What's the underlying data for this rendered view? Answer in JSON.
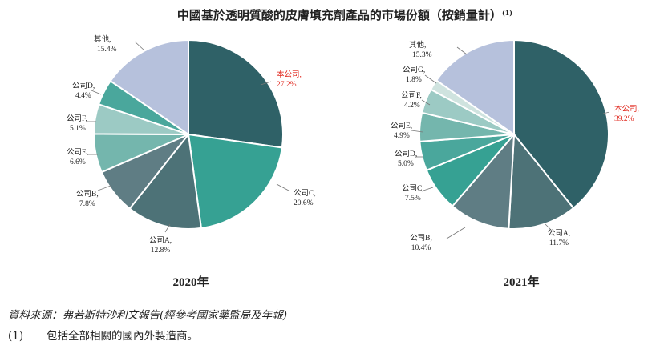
{
  "title": "中國基於透明質酸的皮膚填充劑產品的市場份額（按銷量計）",
  "title_sup": "(1)",
  "colors": {
    "highlight_text": "#e0251b",
    "company_main": "#2f6167",
    "company_a": "#4d7277",
    "company_b": "#5f7d84",
    "company_c": "#36a193",
    "company_d": "#4aa79c",
    "company_e": "#74b6ad",
    "company_f": "#9ccac4",
    "company_g": "#cfe3df",
    "others": "#b6c1dc"
  },
  "chart_data": [
    {
      "type": "pie",
      "caption": "2020年",
      "slices": [
        {
          "label": "本公司",
          "value": 27.2,
          "display": "27.2%",
          "color": "#2f6167",
          "highlight": true
        },
        {
          "label": "公司C",
          "value": 20.6,
          "display": "20.6%",
          "color": "#36a193"
        },
        {
          "label": "公司A",
          "value": 12.8,
          "display": "12.8%",
          "color": "#4d7277"
        },
        {
          "label": "公司B",
          "value": 7.8,
          "display": "7.8%",
          "color": "#5f7d84"
        },
        {
          "label": "公司E",
          "value": 6.6,
          "display": "6.6%",
          "color": "#74b6ad"
        },
        {
          "label": "公司F",
          "value": 5.1,
          "display": "5.1%",
          "color": "#9ccac4"
        },
        {
          "label": "公司D",
          "value": 4.4,
          "display": "4.4%",
          "color": "#4aa79c"
        },
        {
          "label": "其他",
          "value": 15.4,
          "display": "15.4%",
          "color": "#b6c1dc"
        }
      ]
    },
    {
      "type": "pie",
      "caption": "2021年",
      "slices": [
        {
          "label": "本公司",
          "value": 39.2,
          "display": "39.2%",
          "color": "#2f6167",
          "highlight": true
        },
        {
          "label": "公司A",
          "value": 11.7,
          "display": "11.7%",
          "color": "#4d7277"
        },
        {
          "label": "公司B",
          "value": 10.4,
          "display": "10.4%",
          "color": "#5f7d84"
        },
        {
          "label": "公司C",
          "value": 7.5,
          "display": "7.5%",
          "color": "#36a193"
        },
        {
          "label": "公司D",
          "value": 5.0,
          "display": "5.0%",
          "color": "#4aa79c"
        },
        {
          "label": "公司E",
          "value": 4.9,
          "display": "4.9%",
          "color": "#74b6ad"
        },
        {
          "label": "公司F",
          "value": 4.2,
          "display": "4.2%",
          "color": "#9ccac4"
        },
        {
          "label": "公司G",
          "value": 1.8,
          "display": "1.8%",
          "color": "#cfe3df"
        },
        {
          "label": "其他",
          "value": 15.3,
          "display": "15.3%",
          "color": "#b6c1dc"
        }
      ]
    }
  ],
  "source_note": "資料來源：弗若斯特沙利文報告(經參考國家藥監局及年報)",
  "footnote": {
    "number": "(1)",
    "text": "包括全部相關的國內外製造商。"
  }
}
